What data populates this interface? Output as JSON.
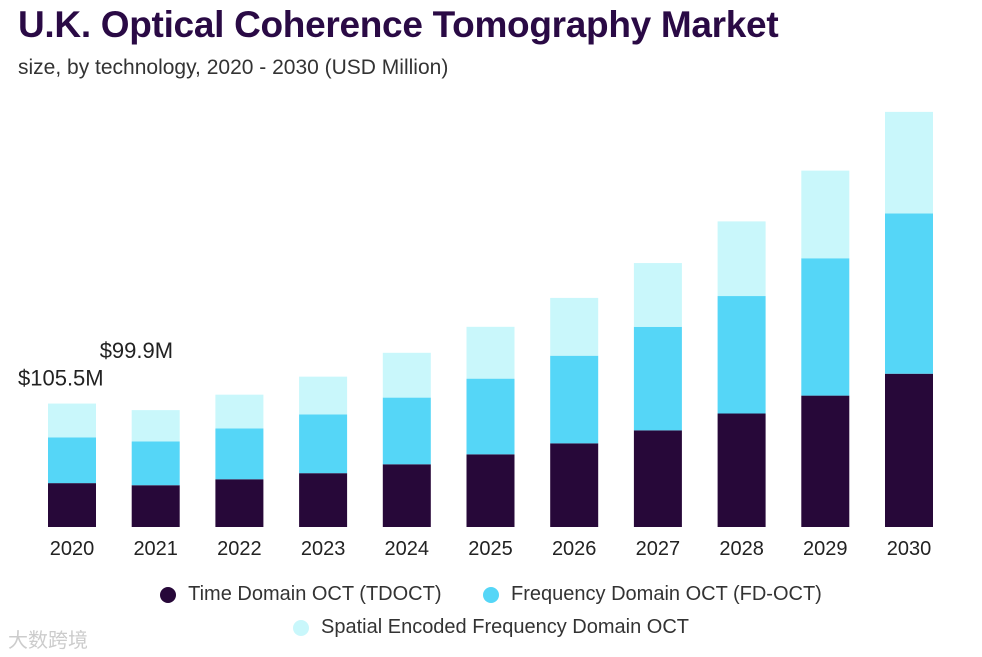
{
  "chart_data": {
    "type": "bar",
    "stacked": true,
    "title": "U.K. Optical Coherence Tomography Market",
    "subtitle": "size, by technology, 2020 - 2030 (USD Million)",
    "categories": [
      "2020",
      "2021",
      "2022",
      "2023",
      "2024",
      "2025",
      "2026",
      "2027",
      "2028",
      "2029",
      "2030"
    ],
    "series": [
      {
        "name": "Time Domain OCT (TDOCT)",
        "color": "#270839",
        "values": [
          37.5,
          35.7,
          40.8,
          46.0,
          53.6,
          62.1,
          71.5,
          82.6,
          97.0,
          112.3,
          131.0
        ]
      },
      {
        "name": "Frequency Domain OCT (FD-OCT)",
        "color": "#55d6f7",
        "values": [
          39.0,
          37.4,
          43.4,
          50.2,
          57.0,
          64.7,
          74.9,
          88.5,
          100.4,
          117.4,
          137.0
        ]
      },
      {
        "name": "Spatial Encoded Frequency Domain OCT",
        "color": "#c9f7fb",
        "values": [
          29.0,
          26.8,
          28.9,
          32.3,
          38.3,
          44.3,
          49.4,
          54.5,
          63.8,
          74.9,
          86.8
        ]
      }
    ],
    "annotations": [
      {
        "category": "2020",
        "text": "$105.5M"
      },
      {
        "category": "2021",
        "text": "$99.9M"
      }
    ],
    "xlabel": "",
    "ylabel": "",
    "ylim": [
      0,
      360
    ],
    "grid": false,
    "legend_position": "bottom"
  },
  "watermark": "大数跨境"
}
